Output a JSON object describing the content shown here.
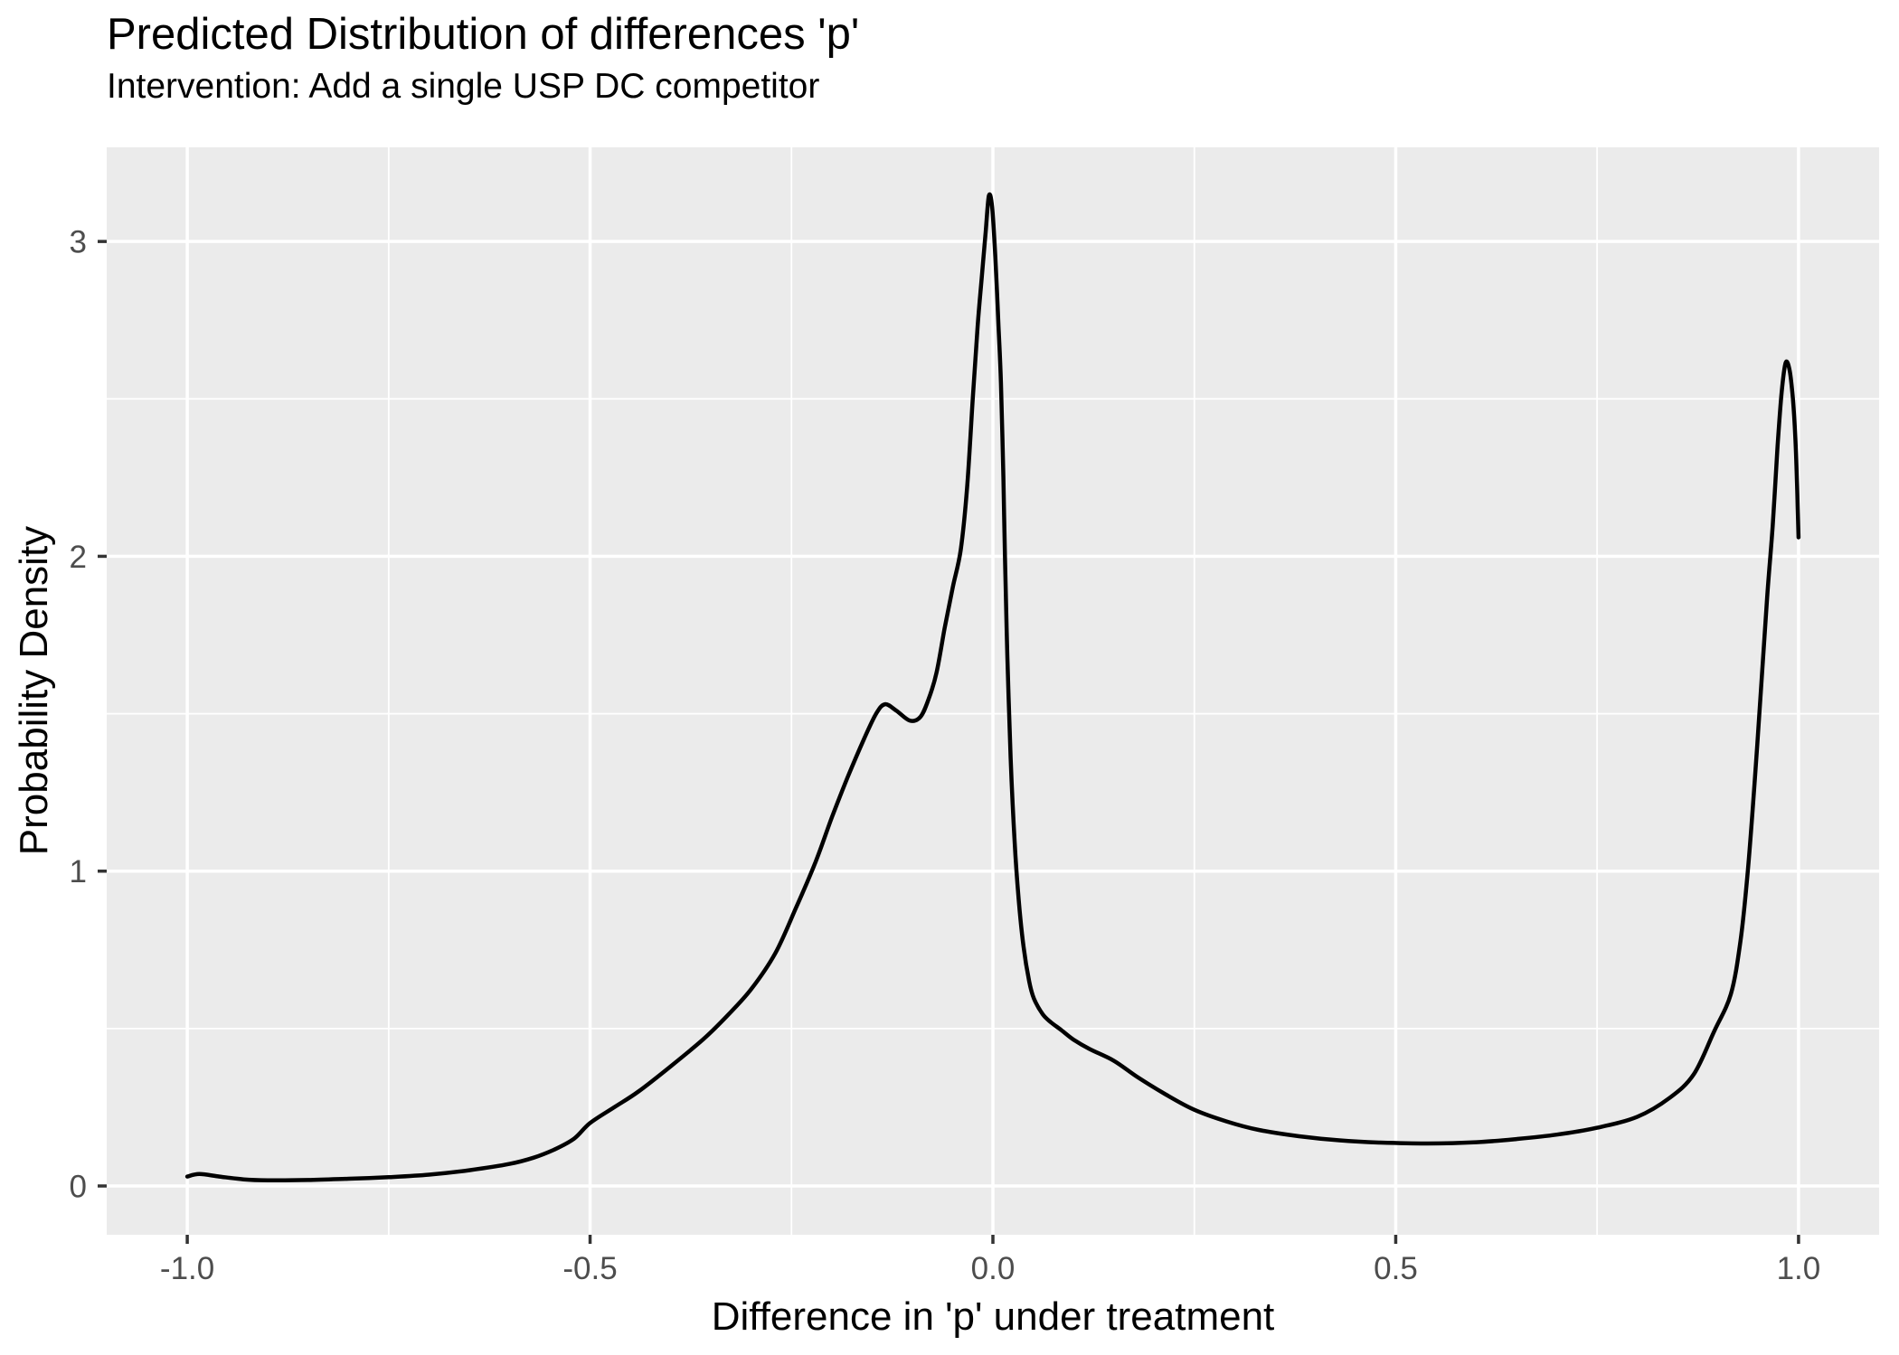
{
  "chart_data": {
    "type": "line",
    "title": "Predicted Distribution of differences 'p'",
    "subtitle": "Intervention: Add a single USP DC competitor",
    "xlabel": "Difference in 'p' under treatment",
    "ylabel": "Probability Density",
    "xlim": [
      -1.1,
      1.1
    ],
    "ylim": [
      -0.155,
      3.299
    ],
    "grid": true,
    "legend": "none",
    "x_major_ticks": [
      {
        "value": -1.0,
        "label": "-1.0"
      },
      {
        "value": -0.5,
        "label": "-0.5"
      },
      {
        "value": 0.0,
        "label": "0.0"
      },
      {
        "value": 0.5,
        "label": "0.5"
      },
      {
        "value": 1.0,
        "label": "1.0"
      }
    ],
    "y_major_ticks": [
      {
        "value": 0,
        "label": "0"
      },
      {
        "value": 1,
        "label": "1"
      },
      {
        "value": 2,
        "label": "2"
      },
      {
        "value": 3,
        "label": "3"
      }
    ],
    "x_minor_ticks": [
      -0.75,
      -0.25,
      0.25,
      0.75
    ],
    "y_minor_ticks": [
      0.5,
      1.5,
      2.5
    ],
    "colors": {
      "panel_background": "#EBEBEB",
      "grid": "#FFFFFF",
      "line": "#000000",
      "tick_label": "#4D4D4D",
      "tick_mark": "#333333",
      "title_text": "#000000"
    },
    "series": [
      {
        "name": "density",
        "points": [
          [
            -1.0,
            0.03
          ],
          [
            -0.985,
            0.038
          ],
          [
            -0.96,
            0.03
          ],
          [
            -0.93,
            0.021
          ],
          [
            -0.9,
            0.018
          ],
          [
            -0.85,
            0.019
          ],
          [
            -0.8,
            0.023
          ],
          [
            -0.75,
            0.028
          ],
          [
            -0.7,
            0.036
          ],
          [
            -0.65,
            0.05
          ],
          [
            -0.6,
            0.07
          ],
          [
            -0.57,
            0.09
          ],
          [
            -0.545,
            0.115
          ],
          [
            -0.52,
            0.15
          ],
          [
            -0.5,
            0.2
          ],
          [
            -0.47,
            0.25
          ],
          [
            -0.44,
            0.3
          ],
          [
            -0.4,
            0.38
          ],
          [
            -0.36,
            0.465
          ],
          [
            -0.33,
            0.54
          ],
          [
            -0.3,
            0.625
          ],
          [
            -0.27,
            0.74
          ],
          [
            -0.245,
            0.88
          ],
          [
            -0.22,
            1.03
          ],
          [
            -0.2,
            1.17
          ],
          [
            -0.18,
            1.3
          ],
          [
            -0.16,
            1.42
          ],
          [
            -0.145,
            1.5
          ],
          [
            -0.134,
            1.53
          ],
          [
            -0.12,
            1.51
          ],
          [
            -0.103,
            1.478
          ],
          [
            -0.09,
            1.49
          ],
          [
            -0.08,
            1.545
          ],
          [
            -0.07,
            1.63
          ],
          [
            -0.06,
            1.77
          ],
          [
            -0.05,
            1.9
          ],
          [
            -0.04,
            2.02
          ],
          [
            -0.032,
            2.22
          ],
          [
            -0.025,
            2.5
          ],
          [
            -0.019,
            2.73
          ],
          [
            -0.014,
            2.88
          ],
          [
            -0.009,
            3.03
          ],
          [
            -0.005,
            3.145
          ],
          [
            -0.001,
            3.11
          ],
          [
            0.003,
            2.95
          ],
          [
            0.007,
            2.73
          ],
          [
            0.01,
            2.55
          ],
          [
            0.013,
            2.25
          ],
          [
            0.015,
            1.99
          ],
          [
            0.018,
            1.68
          ],
          [
            0.022,
            1.36
          ],
          [
            0.027,
            1.09
          ],
          [
            0.032,
            0.91
          ],
          [
            0.038,
            0.76
          ],
          [
            0.045,
            0.65
          ],
          [
            0.051,
            0.595
          ],
          [
            0.062,
            0.545
          ],
          [
            0.072,
            0.52
          ],
          [
            0.085,
            0.495
          ],
          [
            0.1,
            0.465
          ],
          [
            0.12,
            0.435
          ],
          [
            0.15,
            0.398
          ],
          [
            0.18,
            0.345
          ],
          [
            0.215,
            0.29
          ],
          [
            0.25,
            0.242
          ],
          [
            0.29,
            0.205
          ],
          [
            0.33,
            0.178
          ],
          [
            0.38,
            0.158
          ],
          [
            0.43,
            0.145
          ],
          [
            0.48,
            0.138
          ],
          [
            0.54,
            0.135
          ],
          [
            0.6,
            0.139
          ],
          [
            0.65,
            0.149
          ],
          [
            0.7,
            0.163
          ],
          [
            0.75,
            0.185
          ],
          [
            0.8,
            0.22
          ],
          [
            0.84,
            0.28
          ],
          [
            0.87,
            0.355
          ],
          [
            0.895,
            0.49
          ],
          [
            0.916,
            0.61
          ],
          [
            0.928,
            0.78
          ],
          [
            0.937,
            1.0
          ],
          [
            0.946,
            1.3
          ],
          [
            0.954,
            1.6
          ],
          [
            0.961,
            1.87
          ],
          [
            0.968,
            2.1
          ],
          [
            0.974,
            2.35
          ],
          [
            0.979,
            2.52
          ],
          [
            0.984,
            2.615
          ],
          [
            0.989,
            2.59
          ],
          [
            0.993,
            2.5
          ],
          [
            0.996,
            2.38
          ],
          [
            0.998,
            2.24
          ],
          [
            0.999,
            2.15
          ],
          [
            1.0,
            2.06
          ]
        ]
      }
    ]
  }
}
